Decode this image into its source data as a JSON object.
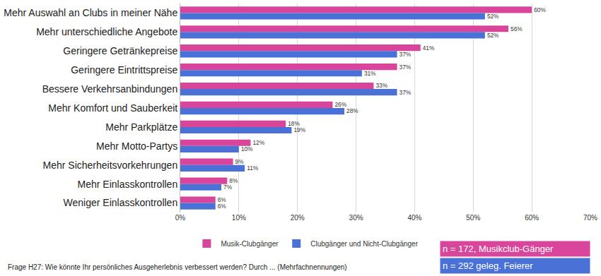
{
  "chart_data": {
    "type": "bar",
    "orientation": "horizontal",
    "categories": [
      "Mehr Auswahl an Clubs in meiner Nähe",
      "Mehr unterschiedliche Angebote",
      "Geringere Getränkepreise",
      "Geringere Eintrittspreise",
      "Bessere Verkehrsanbindungen",
      "Mehr Komfort und Sauberkeit",
      "Mehr Parkplätze",
      "Mehr Motto-Partys",
      "Mehr Sicherheitsvorkehrungen",
      "Mehr Einlasskontrollen",
      "Weniger Einlasskontrollen"
    ],
    "series": [
      {
        "name": "Musik-Clubgänger",
        "color": "#d9459b",
        "values": [
          60,
          56,
          41,
          37,
          33,
          26,
          18,
          12,
          9,
          8,
          6
        ],
        "value_labels": [
          "60%",
          "56%",
          "41%",
          "37%",
          "33%",
          "26%",
          "18%",
          "12%",
          "9%",
          "8%",
          "6%"
        ]
      },
      {
        "name": "Clubgänger und Nicht-Clubgänger",
        "color": "#4a72d6",
        "values": [
          52,
          52,
          37,
          31,
          37,
          28,
          19,
          10,
          11,
          7,
          6
        ],
        "value_labels": [
          "52%",
          "52%",
          "37%",
          "31%",
          "37%",
          "28%",
          "19%",
          "10%",
          "11%",
          "7%",
          "6%"
        ]
      }
    ],
    "xlim": [
      0,
      70
    ],
    "xticks": [
      {
        "value": 0,
        "label": "0%"
      },
      {
        "value": 10,
        "label": "10%"
      },
      {
        "value": 20,
        "label": "20%"
      },
      {
        "value": 30,
        "label": "30%"
      },
      {
        "value": 40,
        "label": "40%"
      },
      {
        "value": 50,
        "label": "50%"
      },
      {
        "value": 60,
        "label": "60%"
      },
      {
        "value": 70,
        "label": "70%"
      }
    ],
    "grid": true,
    "legend": "bottom",
    "data_labels": true,
    "annotations": [
      {
        "text": "Frage H27: Wie könnte Ihr persönliches Ausgeherlebnis verbessert werden? Durch ... (Mehrfachnennungen)"
      },
      {
        "text": "n = 172, Musikclub-Gänger",
        "color": "#d9459b"
      },
      {
        "text": "n = 292 geleg. Feierer",
        "color": "#4a72d6"
      }
    ]
  }
}
